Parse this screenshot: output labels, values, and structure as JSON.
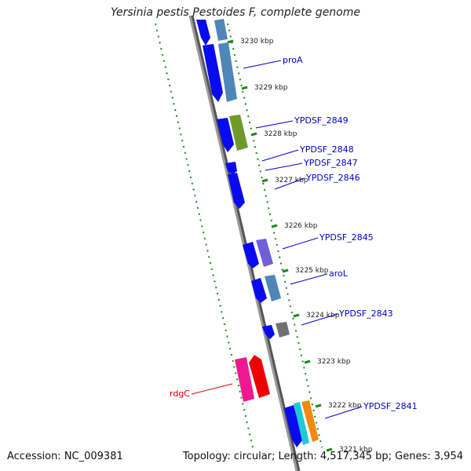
{
  "title": "Yersinia pestis Pestoides F, complete genome",
  "footer": {
    "accession": "Accession: NC_009381",
    "summary": "Topology: circular; Length: 4,517,345 bp; Genes: 3,954"
  },
  "ticks": [
    {
      "label": "3230 kbp",
      "kbp": 3230
    },
    {
      "label": "3229 kbp",
      "kbp": 3229
    },
    {
      "label": "3228 kbp",
      "kbp": 3228
    },
    {
      "label": "3227 kbp",
      "kbp": 3227
    },
    {
      "label": "3226 kbp",
      "kbp": 3226
    },
    {
      "label": "3225 kbp",
      "kbp": 3225
    },
    {
      "label": "3224 kbp",
      "kbp": 3224
    },
    {
      "label": "3223 kbp",
      "kbp": 3223
    },
    {
      "label": "3222 kbp",
      "kbp": 3222
    },
    {
      "label": "3221 kbp",
      "kbp": 3221
    }
  ],
  "gene_labels": [
    {
      "name": "proA",
      "color": "#0000cc"
    },
    {
      "name": "YPDSF_2849",
      "color": "#0000cc"
    },
    {
      "name": "YPDSF_2848",
      "color": "#0000cc"
    },
    {
      "name": "YPDSF_2847",
      "color": "#0000cc"
    },
    {
      "name": "YPDSF_2846",
      "color": "#0000cc"
    },
    {
      "name": "YPDSF_2845",
      "color": "#0000cc"
    },
    {
      "name": "aroL",
      "color": "#0000cc"
    },
    {
      "name": "YPDSF_2843",
      "color": "#0000cc"
    },
    {
      "name": "YPDSF_2841",
      "color": "#0000cc"
    },
    {
      "name": "rdgC",
      "color": "#dd0000"
    }
  ],
  "colors": {
    "cds": "#0a0af0",
    "backbone": "#8a8a8a",
    "tick": "#1a8a1a",
    "gene_blue": "#4f86b8",
    "gene_green": "#6e9a2c",
    "gene_purple": "#7060d8",
    "gene_gray": "#707070",
    "gene_pink": "#f01890",
    "gene_red": "#ee0000",
    "gene_cyan": "#20c8d8",
    "gene_orange": "#f08a10"
  }
}
